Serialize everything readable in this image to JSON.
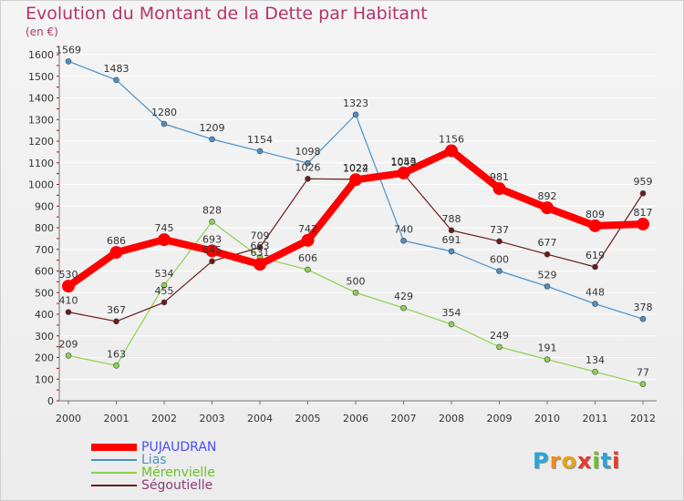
{
  "title": "Evolution du Montant de la Dette par Habitant",
  "unit_label": "(en €)",
  "logo": {
    "letters": [
      "P",
      "r",
      "o",
      "x",
      "i",
      "t",
      "i"
    ],
    "colors": [
      "#2aa6d6",
      "#f08a1c",
      "#e8a21c",
      "#e23a2c",
      "#6cbf2a",
      "#2aa6d6",
      "#e23a2c"
    ]
  },
  "chart_data": {
    "type": "line",
    "x": [
      "2000",
      "2001",
      "2002",
      "2003",
      "2004",
      "2005",
      "2006",
      "2007",
      "2008",
      "2009",
      "2010",
      "2011",
      "2012"
    ],
    "ylim": [
      0,
      1600
    ],
    "yticks": [
      "0",
      "100",
      "200",
      "300",
      "400",
      "500",
      "600",
      "700",
      "800",
      "900",
      "1000",
      "1100",
      "1200",
      "1300",
      "1400",
      "1500",
      "1600"
    ],
    "grid": "horizontal",
    "legend_position": "bottom-left",
    "series": [
      {
        "name": "PUJAUDRAN",
        "color": "#ff0000",
        "width": "thick",
        "values": [
          530,
          686,
          745,
          693,
          631,
          742,
          1022,
          1053,
          1156,
          981,
          892,
          809,
          817
        ],
        "labels": [
          "530",
          "686",
          "745",
          "693",
          "631",
          "742",
          "1022",
          "1053",
          "1156",
          "981",
          "892",
          "809",
          "817"
        ]
      },
      {
        "name": "Lias",
        "color": "#4a90c8",
        "width": "thin",
        "values": [
          1569,
          1483,
          1280,
          1209,
          1154,
          1098,
          1323,
          740,
          691,
          600,
          529,
          448,
          378
        ],
        "labels": [
          "1569",
          "1483",
          "1280",
          "1209",
          "1154",
          "1098",
          "1323",
          "740",
          "691",
          "600",
          "529",
          "448",
          "378"
        ]
      },
      {
        "name": "Mérenvielle",
        "color": "#8fd14f",
        "width": "thin",
        "values": [
          209,
          163,
          534,
          828,
          663,
          606,
          500,
          429,
          354,
          249,
          191,
          134,
          77
        ],
        "labels": [
          "209",
          "163",
          "534",
          "828",
          "663",
          "606",
          "500",
          "429",
          "354",
          "249",
          "191",
          "134",
          "77"
        ]
      },
      {
        "name": "Ségoutielle",
        "color": "#6b1a1a",
        "width": "thin",
        "values": [
          410,
          367,
          455,
          645,
          709,
          1026,
          1024,
          1049,
          788,
          737,
          677,
          619,
          959
        ],
        "labels": [
          "410",
          "367",
          "455",
          "645",
          "709",
          "1026",
          "1024",
          "1049",
          "788",
          "737",
          "677",
          "619",
          "959"
        ]
      }
    ]
  }
}
